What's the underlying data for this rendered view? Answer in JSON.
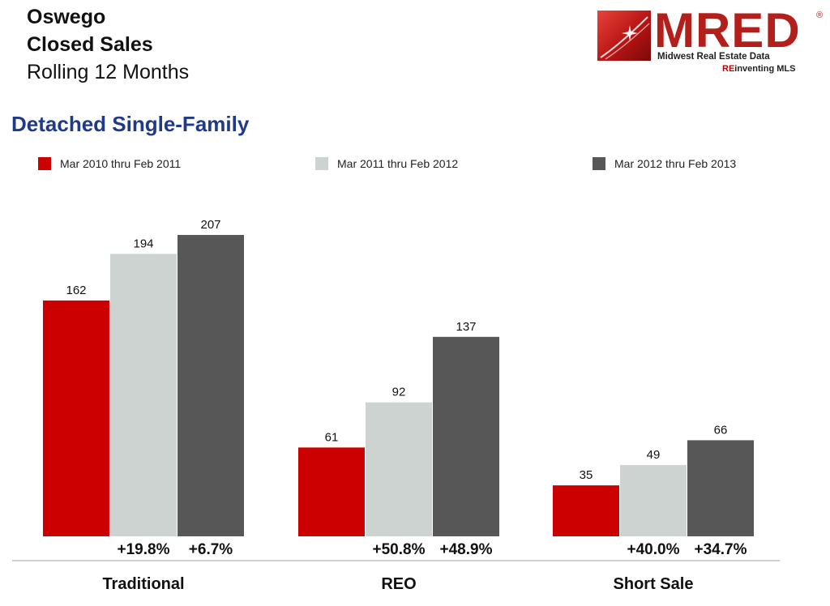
{
  "header": {
    "line1": "Oswego",
    "line2": "Closed Sales",
    "line3": "Rolling 12 Months"
  },
  "logo": {
    "word": "MRED",
    "reg": "®",
    "subtitle": "Midwest Real Estate Data",
    "tag_prefix": "RE",
    "tag_rest": "inventing MLS"
  },
  "section_title": "Detached Single-Family",
  "colors": {
    "series1": "#cc0000",
    "series2": "#cdd3d0",
    "series3": "#575757",
    "title_blue": "#1f3a88",
    "axis": "#bfbfbf"
  },
  "chart_data": {
    "type": "bar",
    "categories": [
      "Traditional",
      "REO",
      "Short Sale"
    ],
    "series": [
      {
        "name": "Mar 2010 thru Feb 2011",
        "values": [
          162,
          61,
          35
        ]
      },
      {
        "name": "Mar 2011 thru Feb 2012",
        "values": [
          194,
          92,
          49
        ]
      },
      {
        "name": "Mar 2012 thru Feb 2013",
        "values": [
          207,
          137,
          66
        ]
      }
    ],
    "change_labels": [
      [
        "+19.8%",
        "+6.7%"
      ],
      [
        "+50.8%",
        "+48.9%"
      ],
      [
        "+40.0%",
        "+34.7%"
      ]
    ],
    "title": "",
    "xlabel": "",
    "ylabel": "",
    "ylim": [
      0,
      207
    ],
    "grid": false,
    "legend": "top"
  }
}
